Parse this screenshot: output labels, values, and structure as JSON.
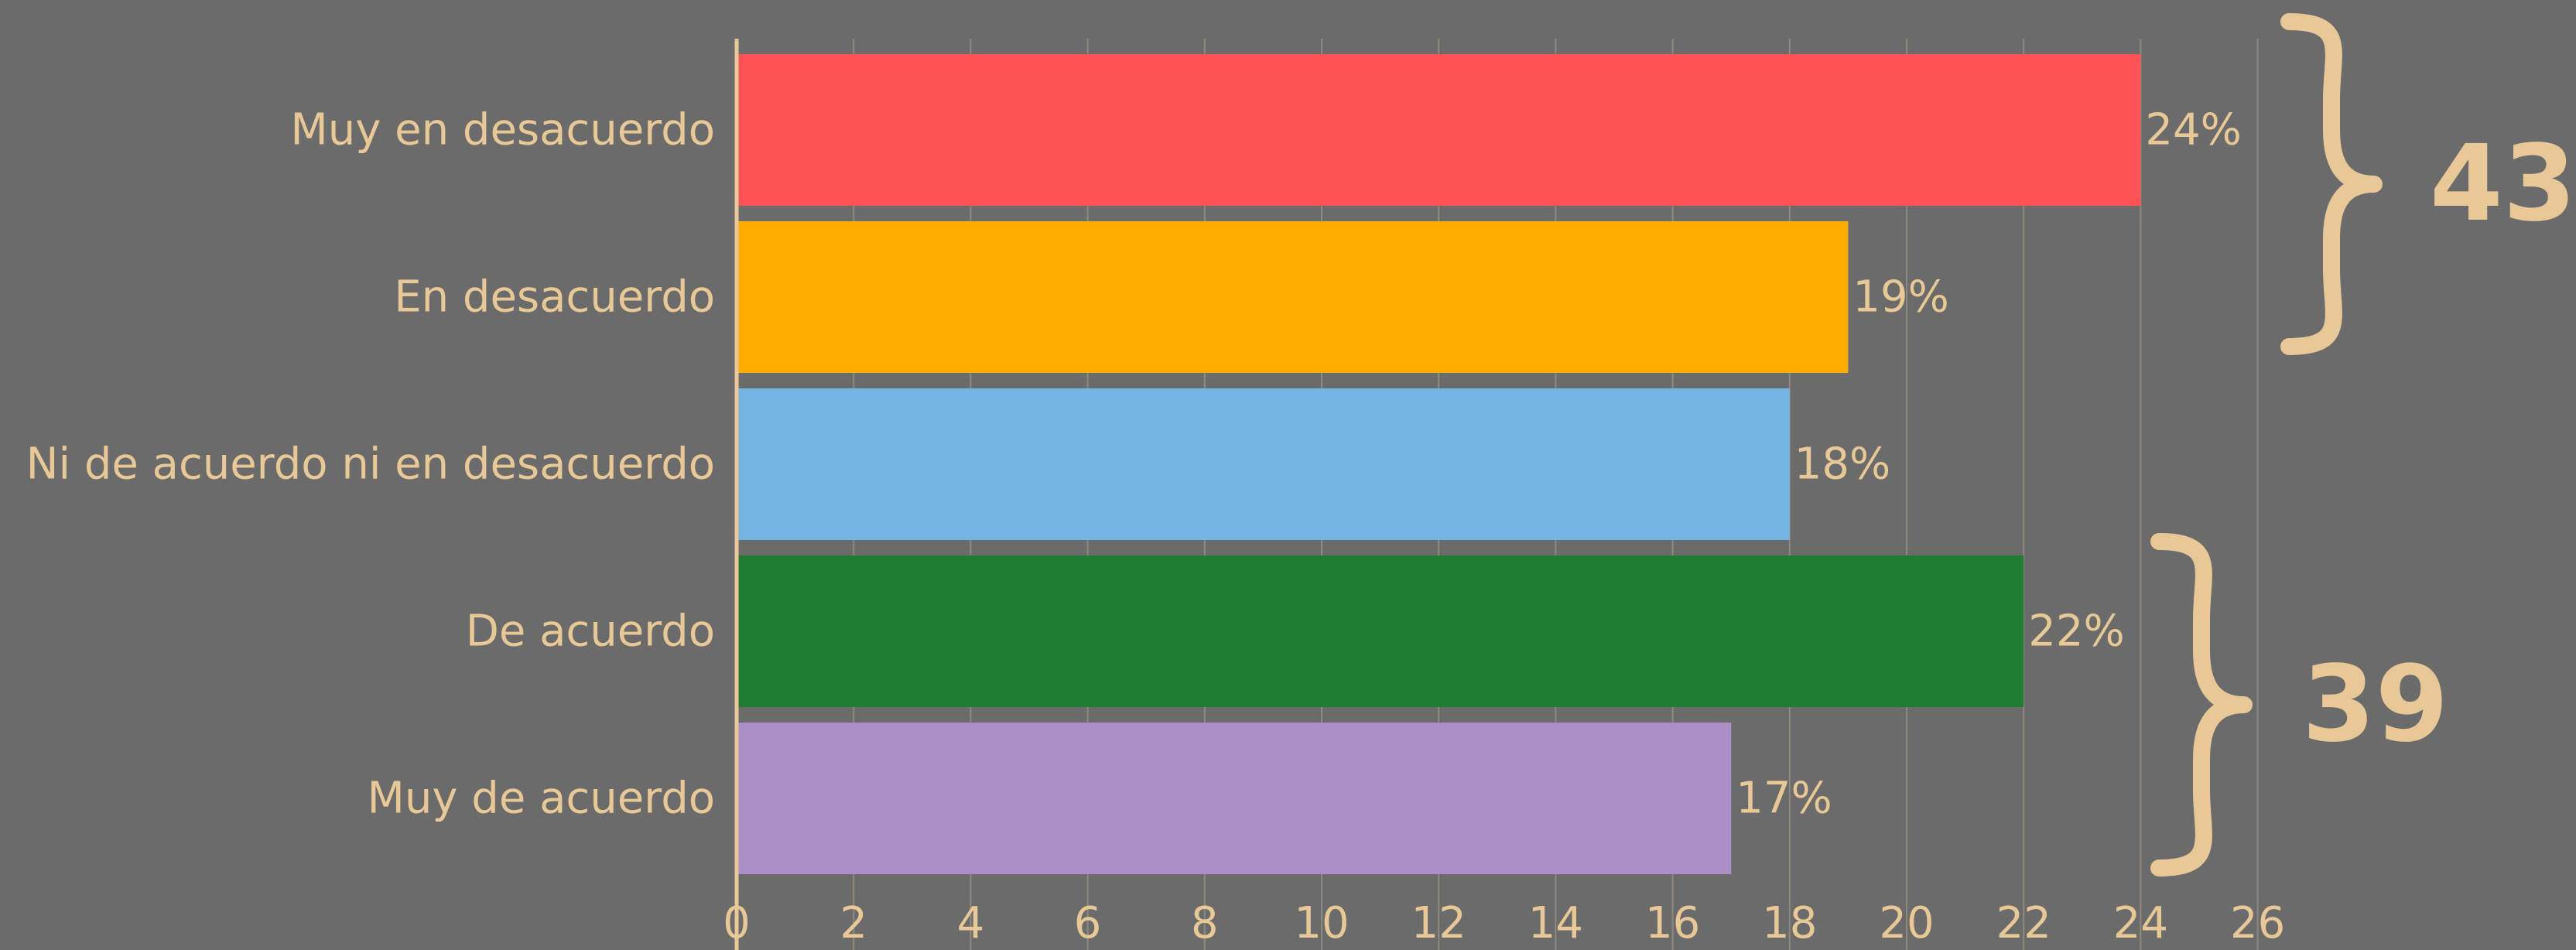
{
  "chart_data": {
    "type": "bar",
    "orientation": "horizontal",
    "categories": [
      "Muy en desacuerdo",
      "En desacuerdo",
      "Ni de acuerdo ni en desacuerdo",
      "De acuerdo",
      "Muy de acuerdo"
    ],
    "values": [
      24,
      19,
      18,
      22,
      17
    ],
    "value_labels": [
      "24%",
      "19%",
      "18%",
      "22%",
      "17%"
    ],
    "colors": [
      "#ff5257",
      "#ffad00",
      "#74b4e2",
      "#207b34",
      "#aa90c6"
    ],
    "xlim": [
      0,
      26
    ],
    "x_ticks": [
      "0",
      "2",
      "4",
      "6",
      "8",
      "10",
      "12",
      "14",
      "16",
      "18",
      "20",
      "22",
      "24",
      "26"
    ],
    "grid": true,
    "text_color": "#e8c896",
    "background": "#6b6b6b",
    "groups": [
      {
        "total": "43",
        "category_indices": [
          0,
          1
        ]
      },
      {
        "total": "39",
        "category_indices": [
          3,
          4
        ]
      }
    ]
  }
}
